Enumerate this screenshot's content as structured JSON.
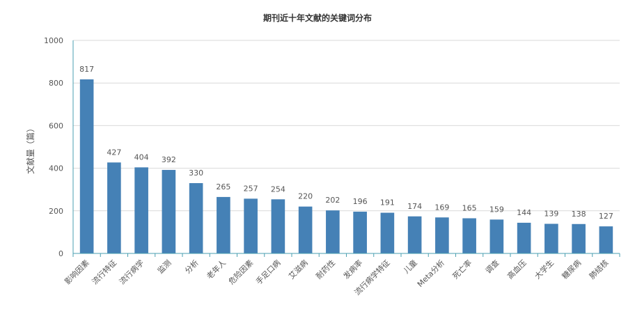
{
  "chart_data": {
    "type": "bar",
    "title": "期刊近十年文献的关键词分布",
    "ylabel": "文献量（篇）",
    "xlabel": "",
    "ylim": [
      0,
      1000
    ],
    "yticks": [
      0,
      200,
      400,
      600,
      800,
      1000
    ],
    "grid": true,
    "categories": [
      "影响因素",
      "流行特征",
      "流行病学",
      "监测",
      "分析",
      "老年人",
      "危险因素",
      "手足口病",
      "艾滋病",
      "耐药性",
      "发病率",
      "流行病学特征",
      "儿童",
      "Meta分析",
      "死亡率",
      "调查",
      "高血压",
      "大学生",
      "糖尿病",
      "肺结核"
    ],
    "values": [
      817,
      427,
      404,
      392,
      330,
      265,
      257,
      254,
      220,
      202,
      196,
      191,
      174,
      169,
      165,
      159,
      144,
      139,
      138,
      127
    ],
    "colors": {
      "bar": "#4581b6",
      "axis": "#4a9fb0",
      "grid": "#d9d9d9",
      "text": "#555555"
    }
  }
}
